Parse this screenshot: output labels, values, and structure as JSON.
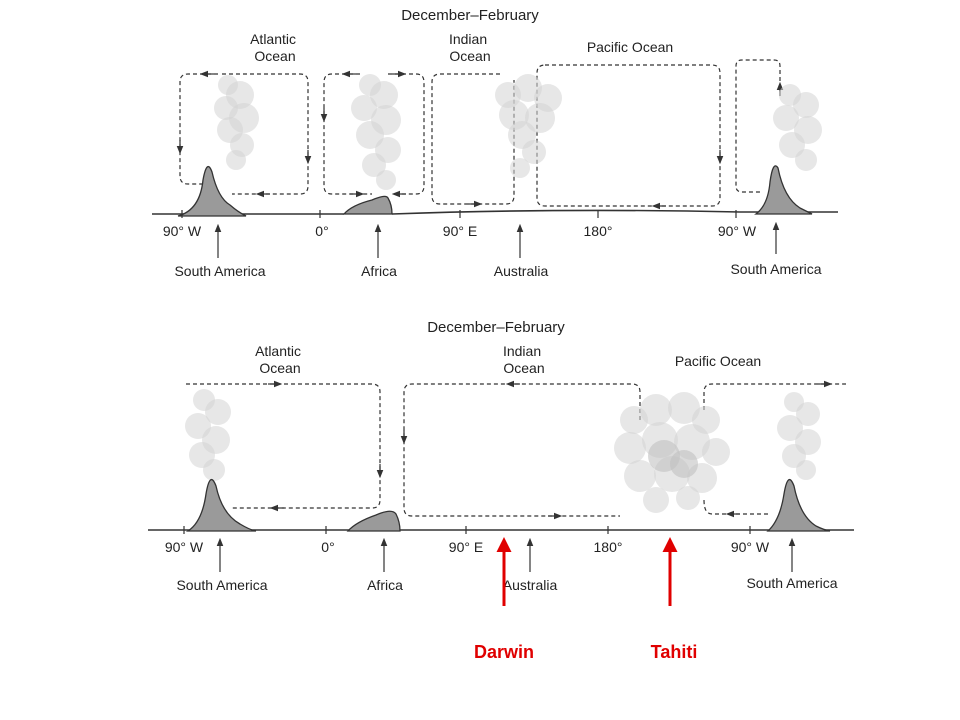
{
  "panels": [
    {
      "title": "December–February",
      "oceans": {
        "atlantic": "Atlantic\nOcean",
        "indian": "Indian\nOcean",
        "pacific": "Pacific Ocean"
      },
      "ticks": [
        "90° W",
        "0°",
        "90° E",
        "180°",
        "90° W"
      ],
      "places": [
        "South America",
        "Africa",
        "Australia",
        "South America"
      ]
    },
    {
      "title": "December–February",
      "oceans": {
        "atlantic": "Atlantic\nOcean",
        "indian": "Indian\nOcean",
        "pacific": "Pacific Ocean"
      },
      "ticks": [
        "90° W",
        "0°",
        "90° E",
        "180°",
        "90° W"
      ],
      "places": [
        "South America",
        "Africa",
        "Australia",
        "South America"
      ]
    }
  ],
  "markers": {
    "darwin": "Darwin",
    "tahiti": "Tahiti"
  },
  "colors": {
    "marker": "#e00000",
    "mountain": "#9a9a9a",
    "line": "#333333"
  }
}
